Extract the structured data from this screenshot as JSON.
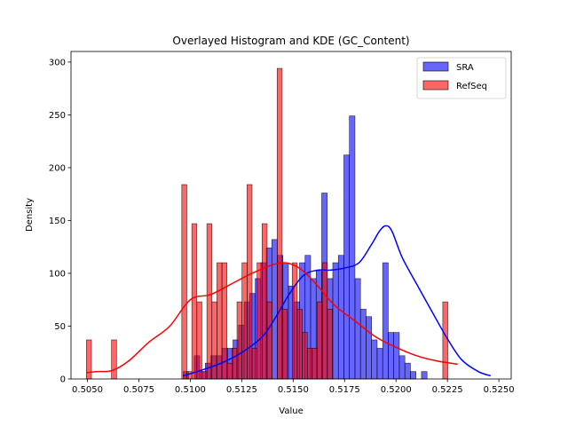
{
  "chart_data": {
    "type": "bar",
    "title": "Overlayed Histogram and KDE (GC_Content)",
    "xlabel": "Value",
    "ylabel": "Density",
    "xlim": [
      0.5042,
      0.5256
    ],
    "ylim": [
      0,
      310
    ],
    "xticks": [
      0.505,
      0.5075,
      0.51,
      0.5125,
      0.515,
      0.5175,
      0.52,
      0.5225,
      0.525
    ],
    "xtick_labels": [
      "0.5050",
      "0.5075",
      "0.5100",
      "0.5125",
      "0.5150",
      "0.5175",
      "0.5200",
      "0.5225",
      "0.5250"
    ],
    "yticks": [
      0,
      50,
      100,
      150,
      200,
      250,
      300
    ],
    "ytick_labels": [
      "0",
      "50",
      "100",
      "150",
      "200",
      "250",
      "300"
    ],
    "legend_position": "top-right",
    "grid": false,
    "series": [
      {
        "name": "SRA",
        "color": "#0000ff",
        "bin_start": 0.50965,
        "bin_width": 0.0002695,
        "values": [
          7,
          0,
          22,
          7,
          15,
          22,
          22,
          29,
          29,
          37,
          51,
          73,
          81,
          95,
          110,
          124,
          132,
          117,
          110,
          88,
          73,
          110,
          117,
          95,
          102,
          176,
          95,
          110,
          117,
          212,
          249,
          95,
          66,
          59,
          37,
          29,
          110,
          44,
          44,
          22,
          15,
          7,
          0,
          7
        ],
        "kde": [
          [
            0.50965,
            3
          ],
          [
            0.5105,
            8
          ],
          [
            0.5115,
            15
          ],
          [
            0.5125,
            25
          ],
          [
            0.5135,
            40
          ],
          [
            0.5142,
            60
          ],
          [
            0.5148,
            80
          ],
          [
            0.5155,
            98
          ],
          [
            0.5162,
            103
          ],
          [
            0.5168,
            103
          ],
          [
            0.5175,
            105
          ],
          [
            0.5182,
            110
          ],
          [
            0.5188,
            127
          ],
          [
            0.5192,
            140
          ],
          [
            0.5195,
            145
          ],
          [
            0.5198,
            140
          ],
          [
            0.5203,
            115
          ],
          [
            0.521,
            90
          ],
          [
            0.5218,
            62
          ],
          [
            0.5225,
            38
          ],
          [
            0.5232,
            18
          ],
          [
            0.524,
            7
          ],
          [
            0.5246,
            3
          ]
        ]
      },
      {
        "name": "RefSeq",
        "color": "#ff0000",
        "bin_start": 0.50495,
        "bin_width": 0.000244,
        "values": [
          37,
          0,
          0,
          0,
          0,
          37,
          0,
          0,
          0,
          0,
          0,
          0,
          0,
          0,
          0,
          0,
          0,
          0,
          0,
          184,
          7,
          147,
          73,
          7,
          147,
          73,
          110,
          110,
          15,
          29,
          73,
          110,
          184,
          29,
          110,
          147,
          73,
          0,
          294,
          66,
          0,
          110,
          66,
          44,
          29,
          29,
          73,
          110,
          66,
          0,
          0,
          0,
          0,
          0,
          0,
          0,
          0,
          0,
          0,
          0,
          0,
          0,
          0,
          0,
          0,
          0,
          0,
          0,
          0,
          0,
          0,
          73
        ],
        "kde": [
          [
            0.50495,
            6
          ],
          [
            0.5055,
            7
          ],
          [
            0.5062,
            8
          ],
          [
            0.507,
            17
          ],
          [
            0.508,
            35
          ],
          [
            0.509,
            50
          ],
          [
            0.51,
            75
          ],
          [
            0.511,
            80
          ],
          [
            0.512,
            90
          ],
          [
            0.513,
            100
          ],
          [
            0.514,
            108
          ],
          [
            0.5145,
            110
          ],
          [
            0.515,
            108
          ],
          [
            0.5155,
            102
          ],
          [
            0.5162,
            88
          ],
          [
            0.517,
            70
          ],
          [
            0.518,
            55
          ],
          [
            0.519,
            40
          ],
          [
            0.52,
            30
          ],
          [
            0.521,
            22
          ],
          [
            0.522,
            17
          ],
          [
            0.523,
            14
          ]
        ]
      }
    ]
  }
}
